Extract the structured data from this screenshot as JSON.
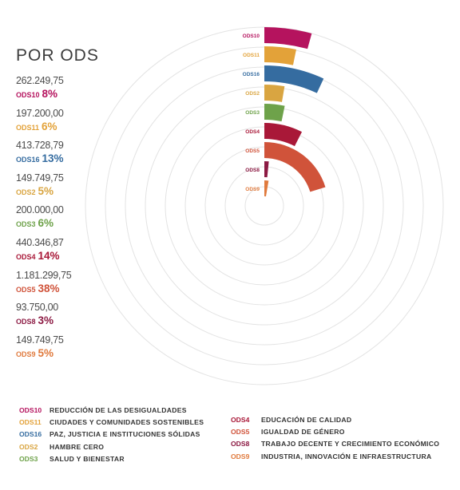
{
  "title": "POR ODS",
  "colors": {
    "ODS10": "#b5135e",
    "ODS11": "#e3a239",
    "ODS16": "#356ca0",
    "ODS2": "#d9a541",
    "ODS3": "#6ea24a",
    "ODS4": "#a91838",
    "ODS5": "#d0533a",
    "ODS8": "#8c1a43",
    "ODS9": "#e07a3d"
  },
  "stats": [
    {
      "code": "ODS10",
      "amount": "262.249,75",
      "percent": "8%"
    },
    {
      "code": "ODS11",
      "amount": "197.200,00",
      "percent": "6%"
    },
    {
      "code": "ODS16",
      "amount": "413.728,79",
      "percent": "13%"
    },
    {
      "code": "ODS2",
      "amount": "149.749,75",
      "percent": "5%"
    },
    {
      "code": "ODS3",
      "amount": "200.000,00",
      "percent": "6%"
    },
    {
      "code": "ODS4",
      "amount": "440.346,87",
      "percent": "14%"
    },
    {
      "code": "ODS5",
      "amount": "1.181.299,75",
      "percent": "38%"
    },
    {
      "code": "ODS8",
      "amount": "93.750,00",
      "percent": "3%"
    },
    {
      "code": "ODS9",
      "amount": "149.749,75",
      "percent": "5%"
    }
  ],
  "chart_data": {
    "type": "radial-bar",
    "categories": [
      "ODS10",
      "ODS11",
      "ODS16",
      "ODS2",
      "ODS3",
      "ODS4",
      "ODS5",
      "ODS8",
      "ODS9"
    ],
    "values": [
      8,
      6,
      13,
      5,
      6,
      14,
      38,
      3,
      5
    ],
    "unit": "%",
    "grid": true
  },
  "legend": {
    "left": [
      {
        "code": "ODS10",
        "label": "REDUCCIÓN DE LAS DESIGUALDADES"
      },
      {
        "code": "ODS11",
        "label": "CIUDADES Y COMUNIDADES SOSTENIBLES"
      },
      {
        "code": "ODS16",
        "label": "PAZ, JUSTICIA E INSTITUCIONES SÓLIDAS"
      },
      {
        "code": "ODS2",
        "label": "HAMBRE CERO"
      },
      {
        "code": "ODS3",
        "label": "SALUD Y BIENESTAR"
      }
    ],
    "right": [
      {
        "code": "ODS4",
        "label": "EDUCACIÓN DE CALIDAD"
      },
      {
        "code": "ODS5",
        "label": "IGUALDAD DE GÉNERO"
      },
      {
        "code": "ODS8",
        "label": "TRABAJO DECENTE Y CRECIMIENTO ECONÓMICO"
      },
      {
        "code": "ODS9",
        "label": "INDUSTRIA, INNOVACIÓN E INFRAESTRUCTURA"
      }
    ]
  }
}
